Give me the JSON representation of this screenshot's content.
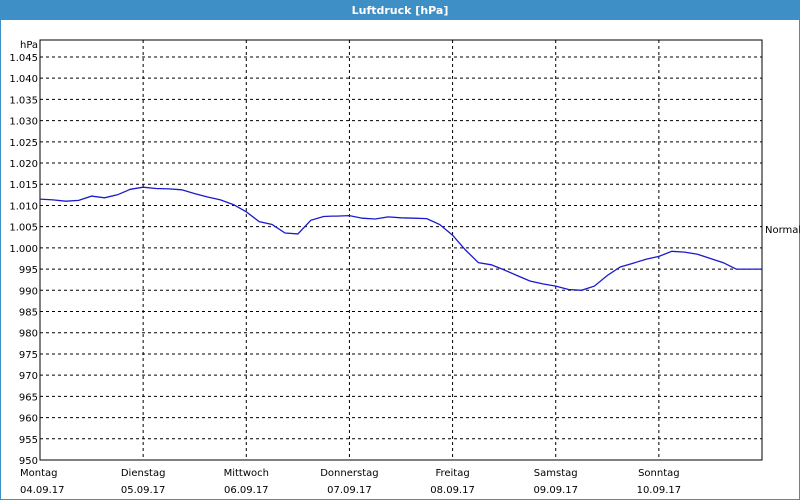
{
  "window": {
    "title": "Luftdruck [hPa]"
  },
  "chart_data": {
    "type": "line",
    "title": "Luftdruck [hPa]",
    "ylabel": "hPa",
    "ylim": [
      950,
      1049
    ],
    "yticks": [
      950,
      955,
      960,
      965,
      970,
      975,
      980,
      985,
      990,
      995,
      1000,
      1005,
      1010,
      1015,
      1020,
      1025,
      1030,
      1035,
      1040,
      1045
    ],
    "ytick_labels": [
      "950",
      "955",
      "960",
      "965",
      "970",
      "975",
      "980",
      "985",
      "990",
      "995",
      "1.000",
      "1.005",
      "1.010",
      "1.015",
      "1.020",
      "1.025",
      "1.030",
      "1.035",
      "1.040",
      "1.045"
    ],
    "xlim": [
      "04.09.17 00:00",
      "11.09.17 00:00"
    ],
    "xticks": [
      {
        "day": "Montag",
        "date": "04.09.17"
      },
      {
        "day": "Dienstag",
        "date": "05.09.17"
      },
      {
        "day": "Mittwoch",
        "date": "06.09.17"
      },
      {
        "day": "Donnerstag",
        "date": "07.09.17"
      },
      {
        "day": "Freitag",
        "date": "08.09.17"
      },
      {
        "day": "Samstag",
        "date": "09.09.17"
      },
      {
        "day": "Sonntag",
        "date": "10.09.17"
      }
    ],
    "reference_line": {
      "label": "Normal",
      "value": 1000
    },
    "grid": true,
    "line_color": "#1a1acc",
    "series": [
      {
        "x": [
          "04.09.17 00:00",
          "04.09.17 03:00",
          "04.09.17 06:00",
          "04.09.17 09:00",
          "04.09.17 12:00",
          "04.09.17 15:00",
          "04.09.17 18:00",
          "04.09.17 21:00",
          "05.09.17 00:00",
          "05.09.17 03:00",
          "05.09.17 06:00",
          "05.09.17 09:00",
          "05.09.17 12:00",
          "05.09.17 15:00",
          "05.09.17 18:00",
          "05.09.17 21:00",
          "06.09.17 00:00",
          "06.09.17 03:00",
          "06.09.17 06:00",
          "06.09.17 09:00",
          "06.09.17 12:00",
          "06.09.17 15:00",
          "06.09.17 18:00",
          "06.09.17 20:00",
          "06.09.17 21:00",
          "07.09.17 00:00",
          "07.09.17 03:00",
          "07.09.17 06:00",
          "07.09.17 09:00",
          "07.09.17 12:00",
          "07.09.17 15:00",
          "07.09.17 18:00",
          "07.09.17 21:00",
          "08.09.17 00:00",
          "08.09.17 03:00",
          "08.09.17 06:00",
          "08.09.17 09:00",
          "08.09.17 12:00",
          "08.09.17 15:00",
          "08.09.17 18:00",
          "08.09.17 21:00",
          "09.09.17 00:00",
          "09.09.17 03:00",
          "09.09.17 06:00",
          "09.09.17 09:00",
          "09.09.17 12:00",
          "09.09.17 15:00",
          "09.09.17 18:00",
          "09.09.17 21:00",
          "10.09.17 00:00",
          "10.09.17 03:00",
          "10.09.17 06:00",
          "10.09.17 09:00",
          "10.09.17 12:00",
          "10.09.17 15:00",
          "10.09.17 18:00",
          "10.09.17 21:00",
          "11.09.17 00:00"
        ],
        "values": [
          1011.5,
          1011.3,
          1011.0,
          1011.2,
          1012.2,
          1011.8,
          1012.5,
          1013.8,
          1014.3,
          1014.0,
          1013.9,
          1013.7,
          1012.8,
          1012.0,
          1011.3,
          1010.2,
          1008.5,
          1006.2,
          1005.5,
          1003.5,
          1003.3,
          1006.5,
          1007.4,
          1007.5,
          1007.5,
          1007.6,
          1007.0,
          1006.8,
          1007.3,
          1007.1,
          1007.0,
          1006.9,
          1005.5,
          1003.0,
          999.5,
          996.5,
          996.0,
          994.8,
          993.5,
          992.2,
          991.5,
          991.0,
          990.2,
          990.0,
          991.0,
          993.5,
          995.5,
          996.4,
          997.3,
          998.0,
          999.2,
          999.0,
          998.5,
          997.5,
          996.5,
          995.0,
          995.0,
          995.0
        ]
      }
    ]
  }
}
